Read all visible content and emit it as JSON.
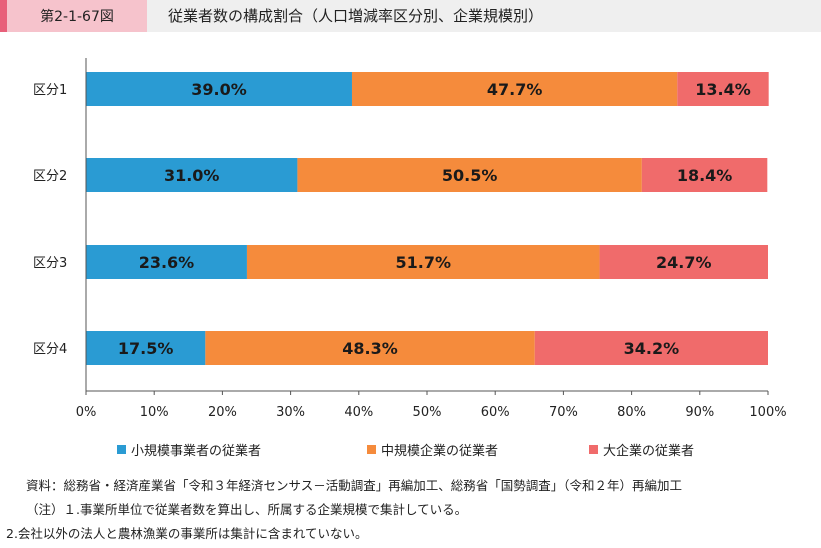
{
  "header": {
    "figure_label": "第2-1-67図",
    "title": "従業者数の構成割合（人口増減率区分別、企業規模別）"
  },
  "chart_data": {
    "type": "bar",
    "orientation": "horizontal",
    "stacked": true,
    "categories": [
      "区分1",
      "区分2",
      "区分3",
      "区分4"
    ],
    "series": [
      {
        "name": "小規模事業者の従業者",
        "color": "#2a9bd3",
        "values": [
          39.0,
          31.0,
          23.6,
          17.5
        ],
        "labels": [
          "39.0%",
          "31.0%",
          "23.6%",
          "17.5%"
        ]
      },
      {
        "name": "中規模企業の従業者",
        "color": "#f58b3c",
        "values": [
          47.7,
          50.5,
          51.7,
          48.3
        ],
        "labels": [
          "47.7%",
          "50.5%",
          "51.7%",
          "48.3%"
        ]
      },
      {
        "name": "大企業の従業者",
        "color": "#f06b6b",
        "values": [
          13.4,
          18.4,
          24.7,
          34.2
        ],
        "labels": [
          "13.4%",
          "18.4%",
          "24.7%",
          "34.2%"
        ]
      }
    ],
    "xlim": [
      0,
      100
    ],
    "xticks": [
      "0%",
      "10%",
      "20%",
      "30%",
      "40%",
      "50%",
      "60%",
      "70%",
      "80%",
      "90%",
      "100%"
    ],
    "legend_position": "bottom",
    "grid": false
  },
  "legend": {
    "items": [
      "小規模事業者の従業者",
      "中規模企業の従業者",
      "大企業の従業者"
    ]
  },
  "notes": {
    "source": "資料：総務省・経済産業省「令和３年経済センサス－活動調査」再編加工、総務省「国勢調査」（令和２年）再編加工",
    "note1": "（注）１.事業所単位で従業者数を算出し、所属する企業規模で集計している。",
    "note2": "2.会社以外の法人と農林漁業の事業所は集計に含まれていない。"
  }
}
